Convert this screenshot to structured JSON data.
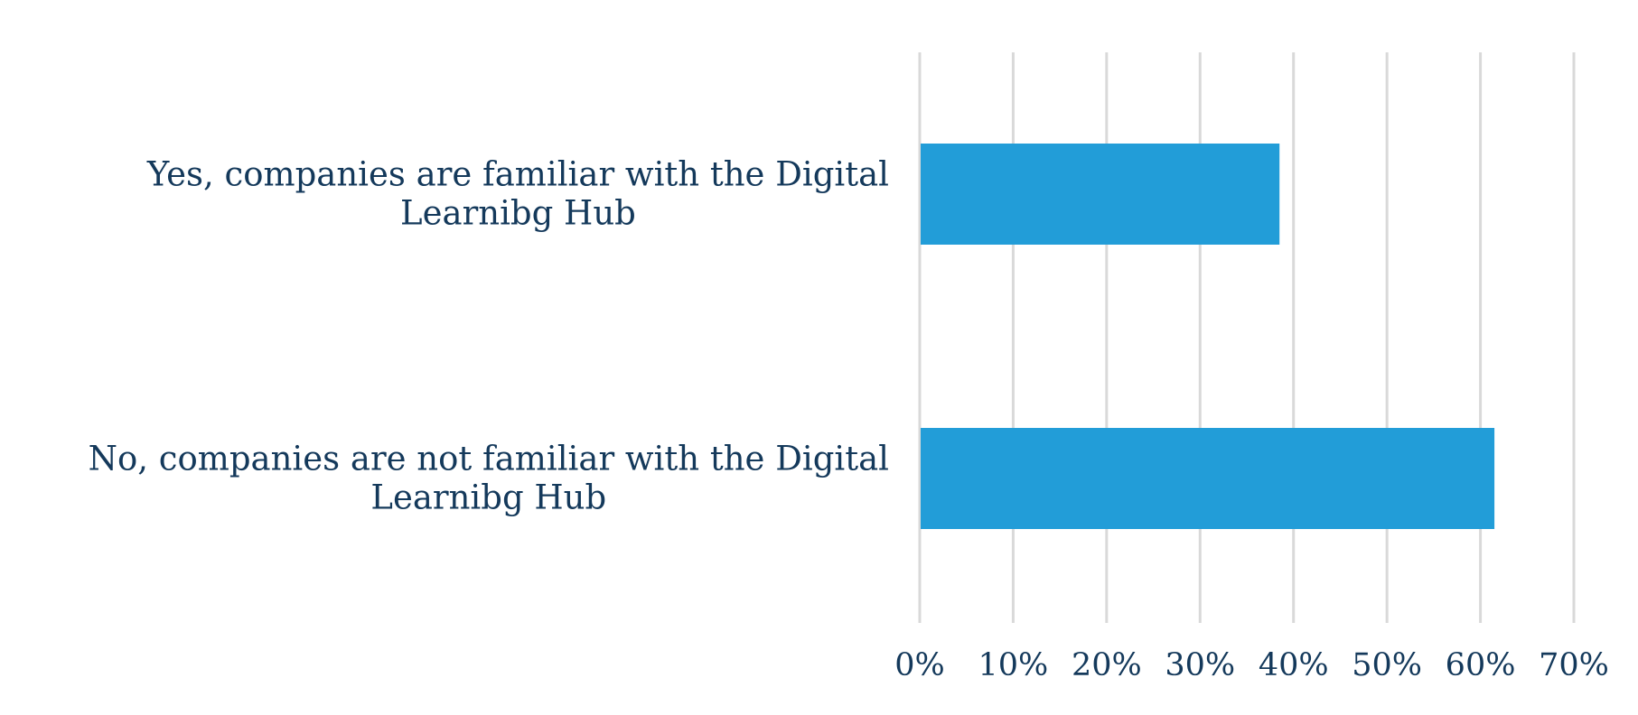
{
  "chart_data": {
    "type": "bar",
    "orientation": "horizontal",
    "categories": [
      [
        "Yes, companies are familiar with the Digital",
        "Learnibg Hub"
      ],
      [
        "No, companies are not familiar with the Digital",
        "Learnibg Hub"
      ]
    ],
    "values": [
      0.385,
      0.615
    ],
    "xlim": [
      0,
      0.7
    ],
    "x_ticks": [
      0,
      0.1,
      0.2,
      0.3,
      0.4,
      0.5,
      0.6,
      0.7
    ],
    "x_tick_labels": [
      "0%",
      "10%",
      "20%",
      "30%",
      "40%",
      "50%",
      "60%",
      "70%"
    ],
    "grid": "vertical",
    "bar_color": "#229dd8",
    "text_color": "#14395b",
    "grid_color": "#d9d9d9",
    "title": "",
    "xlabel": "",
    "ylabel": "",
    "legend": "none"
  }
}
